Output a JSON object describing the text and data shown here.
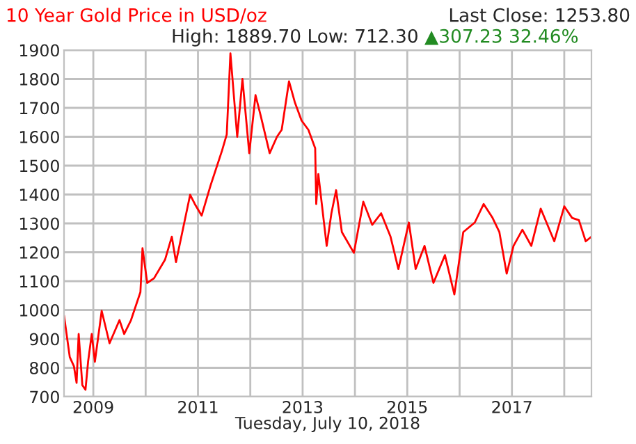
{
  "chart_data": {
    "type": "line",
    "title": "10 Year Gold Price in USD/oz",
    "subtitle": "High: 1889.70 Low: 712.30",
    "annotations": [
      "Last Close: 1253.80",
      "▲307.23 32.46%"
    ],
    "xlabel": "Tuesday, July 10, 2018",
    "xlim": [
      2008.44,
      2018.52
    ],
    "ylim": [
      700,
      1900
    ],
    "xticks": [
      {
        "value": 2009,
        "label": "2009"
      },
      {
        "value": 2010,
        "label": null
      },
      {
        "value": 2011,
        "label": "2011"
      },
      {
        "value": 2012,
        "label": null
      },
      {
        "value": 2013,
        "label": "2013"
      },
      {
        "value": 2014,
        "label": null
      },
      {
        "value": 2015,
        "label": "2015"
      },
      {
        "value": 2016,
        "label": null
      },
      {
        "value": 2017,
        "label": "2017"
      },
      {
        "value": 2018,
        "label": null
      }
    ],
    "yticks": [
      700,
      800,
      900,
      1000,
      1100,
      1200,
      1300,
      1400,
      1500,
      1600,
      1700,
      1800,
      1900
    ],
    "grid": true,
    "legend": false,
    "marker": "none",
    "line_style": "solid",
    "series": [
      {
        "color": "#ff0000",
        "x": [
          2008.44,
          2008.55,
          2008.63,
          2008.68,
          2008.72,
          2008.79,
          2008.85,
          2008.9,
          2008.97,
          2009.03,
          2009.16,
          2009.31,
          2009.5,
          2009.59,
          2009.72,
          2009.9,
          2009.94,
          2010.03,
          2010.16,
          2010.37,
          2010.5,
          2010.58,
          2010.85,
          2010.94,
          2011.07,
          2011.24,
          2011.46,
          2011.55,
          2011.62,
          2011.75,
          2011.85,
          2011.98,
          2012.1,
          2012.2,
          2012.37,
          2012.51,
          2012.6,
          2012.74,
          2012.85,
          2012.98,
          2013.11,
          2013.24,
          2013.26,
          2013.3,
          2013.46,
          2013.55,
          2013.64,
          2013.75,
          2013.98,
          2014.16,
          2014.33,
          2014.5,
          2014.68,
          2014.83,
          2015.03,
          2015.16,
          2015.33,
          2015.5,
          2015.72,
          2015.9,
          2016.07,
          2016.29,
          2016.46,
          2016.63,
          2016.76,
          2016.9,
          2017.03,
          2017.2,
          2017.37,
          2017.55,
          2017.81,
          2018.0,
          2018.15,
          2018.28,
          2018.41,
          2018.52
        ],
        "values": [
          981,
          837,
          805,
          748,
          917,
          740,
          724,
          821,
          917,
          821,
          997,
          885,
          965,
          917,
          965,
          1062,
          1214,
          1094,
          1110,
          1174,
          1254,
          1166,
          1399,
          1367,
          1327,
          1431,
          1552,
          1608,
          1889,
          1600,
          1800,
          1543,
          1744,
          1672,
          1543,
          1600,
          1624,
          1792,
          1720,
          1656,
          1624,
          1560,
          1367,
          1471,
          1222,
          1335,
          1415,
          1270,
          1198,
          1375,
          1295,
          1335,
          1254,
          1142,
          1303,
          1142,
          1222,
          1094,
          1190,
          1054,
          1270,
          1303,
          1367,
          1319,
          1270,
          1126,
          1222,
          1278,
          1222,
          1351,
          1238,
          1359,
          1319,
          1311,
          1238,
          1254
        ]
      }
    ]
  }
}
